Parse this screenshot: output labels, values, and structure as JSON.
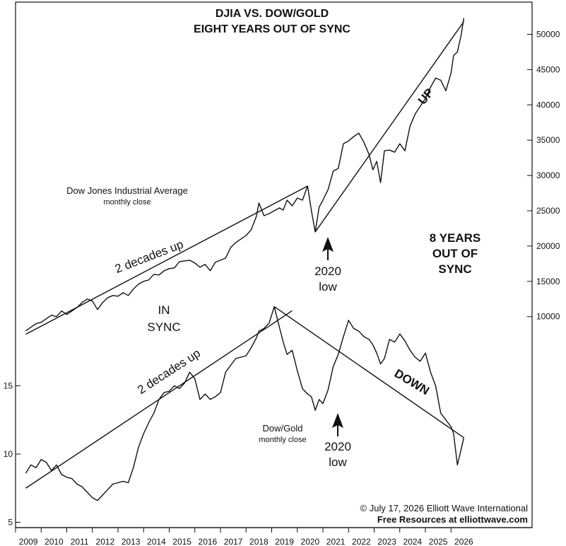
{
  "title_lines": [
    "DJIA VS. DOW/GOLD",
    "EIGHT YEARS OUT OF SYNC"
  ],
  "copyright": "© July 17, 2026  Elliott Wave International",
  "free_resources": "Free Resources at elliottwave.com",
  "labels": {
    "djia_name": "Dow Jones Industrial Average",
    "djia_sub": "monthly close",
    "dg_name": "Dow/Gold",
    "dg_sub": "monthly close",
    "decades_up_1": "2 decades up",
    "decades_up_2": "2 decades up",
    "in_sync_1": "IN",
    "in_sync_2": "SYNC",
    "years_out_1": "8 YEARS",
    "years_out_2": "OUT OF",
    "years_out_3": "SYNC",
    "low1_year": "2020",
    "low1_word": "low",
    "low2_year": "2020",
    "low2_word": "low",
    "up": "UP",
    "down": "DOWN"
  },
  "chart_data": [
    {
      "type": "line",
      "name": "Dow Jones Industrial Average",
      "ylim": [
        0,
        52000
      ],
      "right_axis_ticks": [
        10000,
        15000,
        20000,
        25000,
        30000,
        35000,
        40000,
        45000,
        50000
      ],
      "x_ticks": [
        "2009",
        "2010",
        "2011",
        "2012",
        "2013",
        "2014",
        "2015",
        "2016",
        "2017",
        "2018",
        "2019",
        "2020",
        "2021",
        "2022",
        "2023",
        "2024",
        "2025",
        "2026"
      ],
      "x": [
        2008.9,
        2009.1,
        2009.3,
        2009.5,
        2009.7,
        2009.9,
        2010.1,
        2010.3,
        2010.5,
        2010.7,
        2010.9,
        2011.1,
        2011.3,
        2011.5,
        2011.7,
        2011.9,
        2012.1,
        2012.3,
        2012.5,
        2012.7,
        2012.9,
        2013.1,
        2013.3,
        2013.5,
        2013.7,
        2013.9,
        2014.1,
        2014.3,
        2014.5,
        2014.7,
        2014.9,
        2015.1,
        2015.3,
        2015.5,
        2015.7,
        2015.9,
        2016.1,
        2016.3,
        2016.5,
        2016.7,
        2016.9,
        2017.1,
        2017.3,
        2017.5,
        2017.7,
        2017.9,
        2018.0,
        2018.2,
        2018.4,
        2018.6,
        2018.8,
        2018.95,
        2019.1,
        2019.3,
        2019.5,
        2019.7,
        2019.9,
        2020.05,
        2020.2,
        2020.35,
        2020.5,
        2020.7,
        2020.9,
        2021.1,
        2021.3,
        2021.5,
        2021.7,
        2021.9,
        2022.1,
        2022.3,
        2022.45,
        2022.6,
        2022.75,
        2022.9,
        2023.1,
        2023.3,
        2023.5,
        2023.7,
        2023.9,
        2024.1,
        2024.3,
        2024.5,
        2024.7,
        2024.9,
        2025.1,
        2025.3,
        2025.5,
        2025.6,
        2025.75,
        2025.9,
        2026.0
      ],
      "y": [
        8000,
        8500,
        9000,
        9200,
        9700,
        10200,
        10000,
        10800,
        10300,
        10800,
        11300,
        12000,
        12500,
        12200,
        11000,
        12000,
        12700,
        13000,
        12900,
        13400,
        13000,
        13900,
        14600,
        15000,
        15200,
        16000,
        15900,
        16500,
        16800,
        16900,
        17800,
        17900,
        18000,
        17600,
        17000,
        17400,
        16500,
        17700,
        18000,
        18300,
        19800,
        20500,
        21000,
        21500,
        22300,
        24200,
        26100,
        24300,
        24600,
        25000,
        25400,
        25100,
        26500,
        25700,
        26800,
        26500,
        28500,
        25000,
        22000,
        25500,
        26500,
        28000,
        30600,
        31000,
        34500,
        34900,
        35500,
        36000,
        34700,
        33000,
        30800,
        32000,
        29000,
        33500,
        33600,
        33300,
        34500,
        33500,
        37000,
        38700,
        39800,
        40900,
        42500,
        43800,
        43500,
        42000,
        44500,
        47000,
        47500,
        50000,
        52300
      ]
    },
    {
      "type": "line",
      "name": "Dow/Gold",
      "ylim": [
        5,
        18
      ],
      "left_axis_ticks": [
        5,
        10,
        15
      ],
      "x": [
        2008.9,
        2009.1,
        2009.3,
        2009.5,
        2009.7,
        2009.9,
        2010.1,
        2010.3,
        2010.5,
        2010.7,
        2010.9,
        2011.1,
        2011.3,
        2011.5,
        2011.7,
        2011.9,
        2012.1,
        2012.3,
        2012.5,
        2012.7,
        2012.9,
        2013.1,
        2013.3,
        2013.5,
        2013.7,
        2013.9,
        2014.1,
        2014.3,
        2014.5,
        2014.7,
        2014.9,
        2015.1,
        2015.3,
        2015.5,
        2015.7,
        2015.9,
        2016.1,
        2016.3,
        2016.5,
        2016.7,
        2016.9,
        2017.1,
        2017.3,
        2017.5,
        2017.7,
        2017.9,
        2018.0,
        2018.2,
        2018.4,
        2018.6,
        2018.8,
        2018.95,
        2019.1,
        2019.3,
        2019.5,
        2019.7,
        2019.9,
        2020.05,
        2020.2,
        2020.35,
        2020.5,
        2020.7,
        2020.9,
        2021.1,
        2021.3,
        2021.5,
        2021.7,
        2021.9,
        2022.1,
        2022.3,
        2022.45,
        2022.6,
        2022.75,
        2022.9,
        2023.1,
        2023.3,
        2023.5,
        2023.7,
        2023.9,
        2024.1,
        2024.3,
        2024.5,
        2024.7,
        2024.9,
        2025.1,
        2025.3,
        2025.5,
        2025.6,
        2025.75,
        2025.9,
        2026.0
      ],
      "y": [
        8.6,
        9.2,
        9.0,
        9.6,
        9.4,
        8.8,
        9.2,
        8.5,
        8.3,
        8.2,
        7.8,
        7.6,
        7.2,
        6.8,
        6.6,
        7.0,
        7.4,
        7.8,
        7.9,
        8.0,
        7.9,
        9.0,
        10.5,
        11.5,
        12.3,
        13.0,
        14.0,
        14.5,
        14.6,
        15.0,
        14.8,
        15.2,
        16.0,
        15.5,
        14.0,
        14.4,
        14.0,
        14.2,
        14.5,
        16.0,
        16.5,
        17.0,
        17.1,
        17.2,
        17.8,
        18.5,
        19.0,
        19.2,
        19.6,
        20.8,
        19.3,
        18.2,
        17.3,
        17.6,
        16.1,
        14.8,
        14.4,
        14.2,
        13.2,
        14.0,
        13.7,
        14.7,
        16.4,
        17.3,
        18.6,
        19.8,
        19.2,
        19.0,
        18.6,
        18.4,
        18.0,
        17.4,
        16.6,
        17.0,
        18.4,
        18.2,
        18.8,
        18.3,
        17.6,
        17.1,
        16.8,
        17.4,
        16.0,
        15.0,
        13.0,
        12.5,
        12.0,
        11.5,
        9.2,
        10.4,
        11.2
      ]
    }
  ]
}
